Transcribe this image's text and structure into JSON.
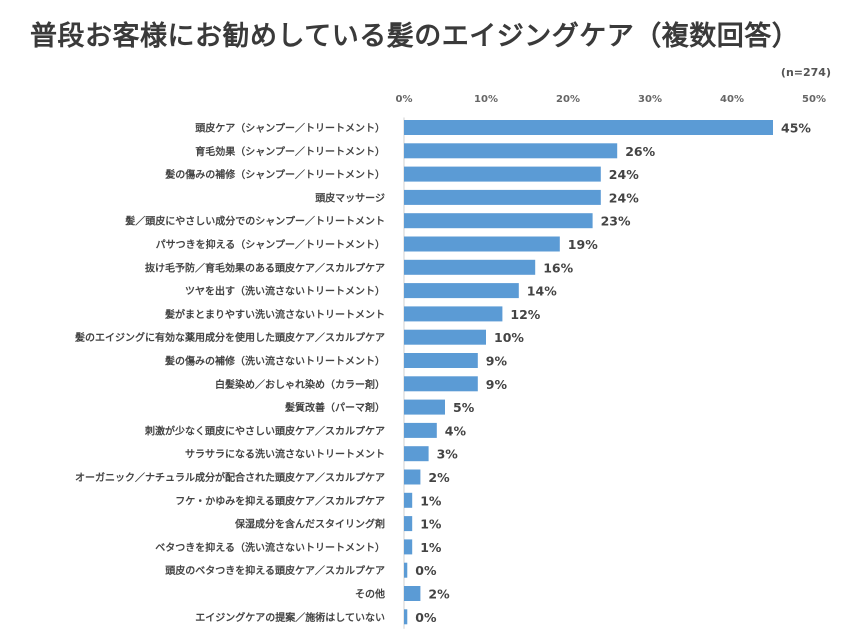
{
  "chart_data": {
    "type": "bar",
    "orientation": "horizontal",
    "title": "普段お客様にお勧めしている髪のエイジングケア（複数回答）",
    "note": "(n=274)",
    "xlim": [
      0,
      50
    ],
    "ticks": [
      "0%",
      "10%",
      "20%",
      "30%",
      "40%",
      "50%"
    ],
    "bar_color": "#5b9bd5",
    "categories": [
      "頭皮ケア（シャンプー／トリートメント）",
      "育毛効果（シャンプー／トリートメント）",
      "髪の傷みの補修（シャンプー／トリートメント）",
      "頭皮マッサージ",
      "髪／頭皮にやさしい成分でのシャンプー／トリートメント",
      "パサつきを抑える（シャンプー／トリートメント）",
      "抜け毛予防／育毛効果のある頭皮ケア／スカルプケア",
      "ツヤを出す（洗い流さないトリートメント）",
      "髪がまとまりやすい洗い流さないトリートメント",
      "髪のエイジングに有効な薬用成分を使用した頭皮ケア／スカルプケア",
      "髪の傷みの補修（洗い流さないトリートメント）",
      "白髪染め／おしゃれ染め（カラー剤）",
      "髪質改善（パーマ剤）",
      "刺激が少なく頭皮にやさしい頭皮ケア／スカルプケア",
      "サラサラになる洗い流さないトリートメント",
      "オーガニック／ナチュラル成分が配合された頭皮ケア／スカルプケア",
      "フケ・かゆみを抑える頭皮ケア／スカルプケア",
      "保湿成分を含んだスタイリング剤",
      "ベタつきを抑える（洗い流さないトリートメント）",
      "頭皮のベタつきを抑える頭皮ケア／スカルプケア",
      "その他",
      "エイジングケアの提案／施術はしていない"
    ],
    "values": [
      45,
      26,
      24,
      24,
      23,
      19,
      16,
      14,
      12,
      10,
      9,
      9,
      5,
      4,
      3,
      2,
      1,
      1,
      1,
      0.4,
      2,
      0.4
    ],
    "value_labels": [
      "45%",
      "26%",
      "24%",
      "24%",
      "23%",
      "19%",
      "16%",
      "14%",
      "12%",
      "10%",
      "9%",
      "9%",
      "5%",
      "4%",
      "3%",
      "2%",
      "1%",
      "1%",
      "1%",
      "0%",
      "2%",
      "0%"
    ]
  }
}
